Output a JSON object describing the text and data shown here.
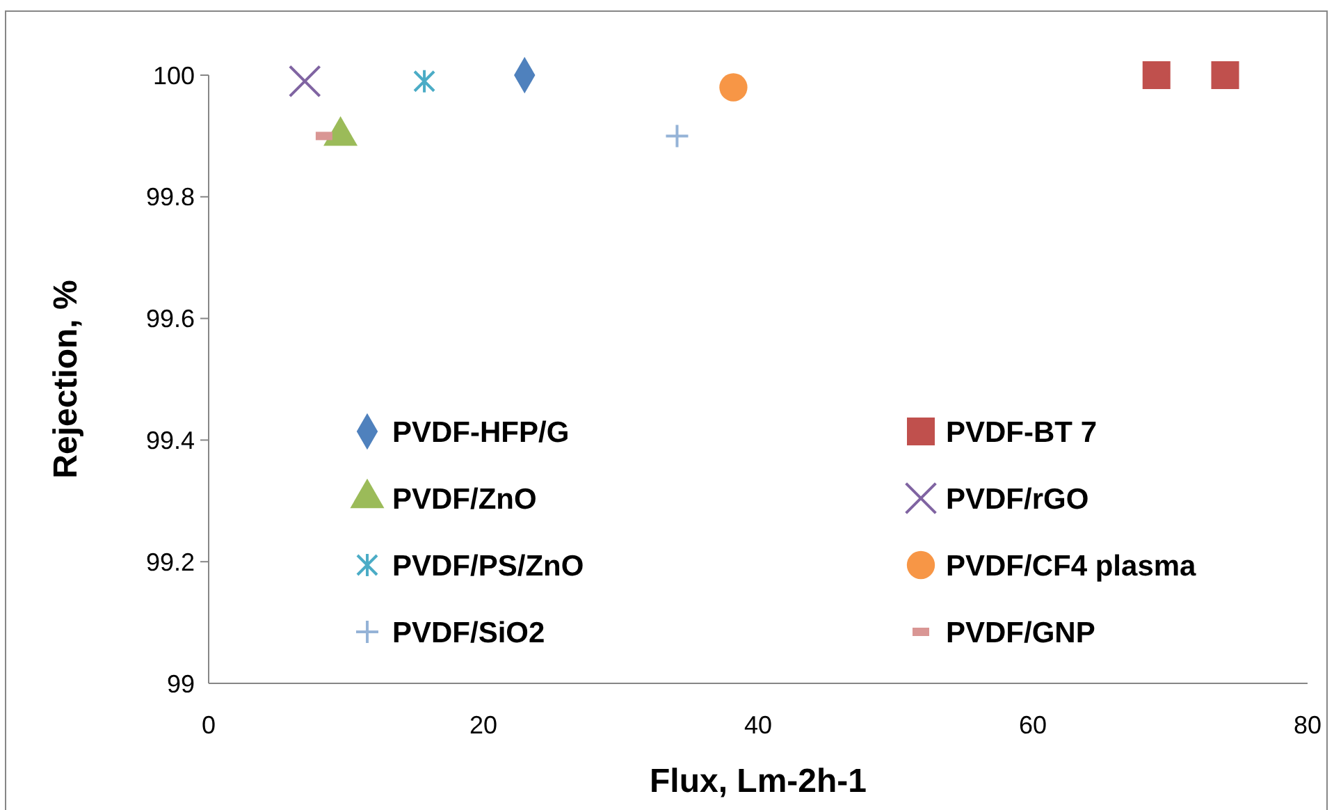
{
  "chart_data": {
    "type": "scatter",
    "xlabel": "Flux, Lm-2h-1",
    "ylabel": "Rejection, %",
    "xlim": [
      0,
      80
    ],
    "xticks": [
      0,
      20,
      40,
      60,
      80
    ],
    "ylim": [
      99,
      100
    ],
    "yticks": [
      99,
      99.2,
      99.4,
      99.6,
      99.8,
      100
    ],
    "legend": "bottom",
    "grid": false,
    "series": [
      {
        "name": "PVDF-HFP/G",
        "color": "#4f81bd",
        "marker": "diamond",
        "x": [
          23
        ],
        "values": [
          100
        ]
      },
      {
        "name": "PVDF-BT 7",
        "color": "#c0504d",
        "marker": "square",
        "x": [
          69,
          74
        ],
        "values": [
          100,
          100
        ]
      },
      {
        "name": "PVDF/ZnO",
        "color": "#9bbb59",
        "marker": "triangle",
        "x": [
          9.6
        ],
        "values": [
          99.9
        ]
      },
      {
        "name": "PVDF/rGO",
        "color": "#8064a2",
        "marker": "x",
        "x": [
          7
        ],
        "values": [
          99.99
        ]
      },
      {
        "name": "PVDF/PS/ZnO",
        "color": "#4bacc6",
        "marker": "cross",
        "x": [
          15.7
        ],
        "values": [
          99.99
        ]
      },
      {
        "name": "PVDF/CF4 plasma",
        "color": "#f79646",
        "marker": "circle",
        "x": [
          38.2
        ],
        "values": [
          99.98
        ]
      },
      {
        "name": "PVDF/SiO2",
        "color": "#95b3d7",
        "marker": "plus",
        "x": [
          34.1
        ],
        "values": [
          99.9
        ]
      },
      {
        "name": "PVDF/GNP",
        "color": "#d99694",
        "x": [
          8.4
        ],
        "values": [
          99.9
        ]
      }
    ]
  }
}
